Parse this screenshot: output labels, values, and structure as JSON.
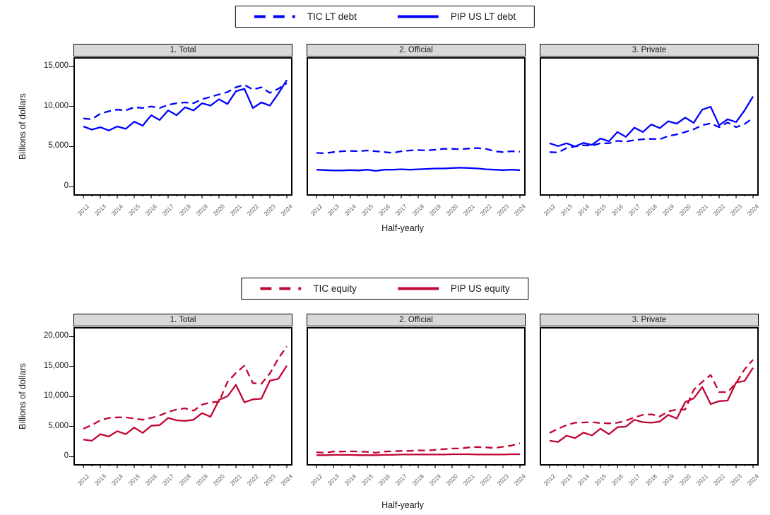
{
  "chart_data": [
    {
      "type": "line",
      "row": "top",
      "color": "#0000ff",
      "ylabel": "Billions of dollars",
      "xlabel": "Half-yearly",
      "x_frequency": "half-yearly",
      "x_years": [
        "2012",
        "2013",
        "2014",
        "2015",
        "2016",
        "2017",
        "2018",
        "2019",
        "2020",
        "2021",
        "2022",
        "2023",
        "2024"
      ],
      "points_per_series": 25,
      "yticks": [
        0,
        5000,
        10000,
        15000
      ],
      "ytick_labels": [
        "0",
        "5,000",
        "10,000",
        "15,000"
      ],
      "legend": [
        {
          "label": "TIC LT debt",
          "dash": true
        },
        {
          "label": "PIP US LT debt",
          "dash": false
        }
      ],
      "panels": [
        {
          "title": "1. Total",
          "series": [
            {
              "name": "TIC LT debt",
              "dash": true,
              "values": [
                8500,
                8400,
                9100,
                9400,
                9600,
                9500,
                9900,
                9800,
                10000,
                9800,
                10200,
                10400,
                10500,
                10400,
                10900,
                11200,
                11500,
                11800,
                12400,
                12700,
                12100,
                12400,
                11700,
                12200,
                12900
              ]
            },
            {
              "name": "PIP US LT debt",
              "dash": false,
              "values": [
                7500,
                7100,
                7400,
                7000,
                7500,
                7200,
                8100,
                7600,
                8900,
                8300,
                9500,
                8900,
                9900,
                9500,
                10400,
                10100,
                10900,
                10300,
                11900,
                12200,
                9800,
                10500,
                10100,
                11600,
                13300
              ]
            }
          ]
        },
        {
          "title": "2. Official",
          "series": [
            {
              "name": "TIC LT debt",
              "dash": true,
              "values": [
                4200,
                4150,
                4300,
                4400,
                4450,
                4400,
                4500,
                4400,
                4300,
                4200,
                4400,
                4500,
                4550,
                4500,
                4600,
                4700,
                4700,
                4650,
                4750,
                4800,
                4700,
                4400,
                4300,
                4400,
                4350
              ]
            },
            {
              "name": "PIP US LT debt",
              "dash": false,
              "values": [
                2100,
                2050,
                2000,
                2000,
                2050,
                2000,
                2100,
                1950,
                2100,
                2100,
                2150,
                2100,
                2150,
                2200,
                2250,
                2250,
                2300,
                2350,
                2300,
                2250,
                2150,
                2100,
                2050,
                2100,
                2050
              ]
            }
          ]
        },
        {
          "title": "3. Private",
          "series": [
            {
              "name": "TIC LT debt",
              "dash": true,
              "values": [
                4300,
                4250,
                4800,
                5000,
                5150,
                5100,
                5400,
                5400,
                5700,
                5600,
                5800,
                5900,
                5950,
                5900,
                6300,
                6500,
                6800,
                7150,
                7650,
                7900,
                7400,
                8000,
                7400,
                7800,
                8550
              ]
            },
            {
              "name": "PIP US LT debt",
              "dash": false,
              "values": [
                5400,
                5050,
                5400,
                5000,
                5450,
                5200,
                6000,
                5650,
                6800,
                6200,
                7350,
                6800,
                7750,
                7300,
                8150,
                7850,
                8600,
                7950,
                9600,
                9950,
                7650,
                8400,
                8050,
                9500,
                11250
              ]
            }
          ]
        }
      ]
    },
    {
      "type": "line",
      "row": "bottom",
      "color": "#c10534",
      "ylabel": "Billions of dollars",
      "xlabel": "Half-yearly",
      "x_frequency": "half-yearly",
      "x_years": [
        "2012",
        "2013",
        "2014",
        "2015",
        "2016",
        "2017",
        "2018",
        "2019",
        "2020",
        "2021",
        "2022",
        "2023",
        "2024"
      ],
      "points_per_series": 25,
      "yticks": [
        0,
        5000,
        10000,
        15000,
        20000
      ],
      "ytick_labels": [
        "0",
        "5,000",
        "10,000",
        "15,000",
        "20,000"
      ],
      "legend": [
        {
          "label": "TIC equity",
          "dash": true
        },
        {
          "label": "PIP US equity",
          "dash": false
        }
      ],
      "panels": [
        {
          "title": "1. Total",
          "series": [
            {
              "name": "TIC equity",
              "dash": true,
              "values": [
                4600,
                5200,
                6000,
                6400,
                6500,
                6500,
                6300,
                6100,
                6400,
                6800,
                7400,
                7800,
                8000,
                7600,
                8600,
                9000,
                9100,
                12400,
                13900,
                15100,
                12200,
                12100,
                13800,
                16300,
                18300
              ]
            },
            {
              "name": "PIP US equity",
              "dash": false,
              "values": [
                2800,
                2600,
                3700,
                3300,
                4200,
                3700,
                4800,
                3900,
                5100,
                5200,
                6400,
                6000,
                5900,
                6100,
                7200,
                6600,
                9400,
                10000,
                11900,
                9000,
                9500,
                9600,
                12600,
                12900,
                15100
              ]
            }
          ]
        },
        {
          "title": "2. Official",
          "series": [
            {
              "name": "TIC equity",
              "dash": true,
              "values": [
                700,
                600,
                800,
                800,
                850,
                800,
                750,
                600,
                800,
                850,
                900,
                900,
                1000,
                950,
                1100,
                1200,
                1300,
                1300,
                1500,
                1550,
                1500,
                1400,
                1600,
                1800,
                2200
              ]
            },
            {
              "name": "PIP US equity",
              "dash": false,
              "values": [
                200,
                200,
                250,
                250,
                250,
                200,
                200,
                200,
                250,
                250,
                300,
                300,
                300,
                300,
                300,
                300,
                350,
                350,
                350,
                300,
                300,
                300,
                300,
                350,
                350
              ]
            }
          ]
        },
        {
          "title": "3. Private",
          "series": [
            {
              "name": "TIC equity",
              "dash": true,
              "values": [
                3900,
                4600,
                5200,
                5600,
                5650,
                5700,
                5550,
                5500,
                5600,
                5950,
                6500,
                6900,
                7000,
                6650,
                7500,
                7800,
                7800,
                11100,
                12400,
                13550,
                10700,
                10700,
                12200,
                14500,
                16100
              ]
            },
            {
              "name": "PIP US equity",
              "dash": false,
              "values": [
                2600,
                2400,
                3450,
                3050,
                3950,
                3500,
                4600,
                3700,
                4850,
                4950,
                6100,
                5700,
                5600,
                5800,
                6900,
                6300,
                9050,
                9650,
                11550,
                8700,
                9200,
                9300,
                12300,
                12550,
                14750
              ]
            }
          ]
        }
      ]
    }
  ]
}
